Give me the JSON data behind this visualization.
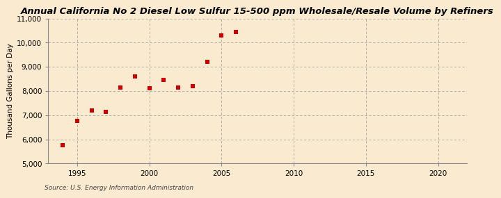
{
  "title": "Annual California No 2 Diesel Low Sulfur 15-500 ppm Wholesale/Resale Volume by Refiners",
  "ylabel": "Thousand Gallons per Day",
  "source": "Source: U.S. Energy Information Administration",
  "x_data": [
    1994,
    1995,
    1996,
    1997,
    1998,
    1999,
    2000,
    2001,
    2002,
    2003,
    2004,
    2005,
    2006
  ],
  "y_data": [
    5750,
    6750,
    7200,
    7150,
    8150,
    8600,
    8100,
    8450,
    8150,
    8200,
    9200,
    10300,
    10450
  ],
  "marker_color": "#cc0000",
  "marker_size": 18,
  "bg_color": "#faebd0",
  "plot_bg_color": "#faebd0",
  "grid_color": "#999999",
  "xlim": [
    1993,
    2022
  ],
  "ylim": [
    5000,
    11000
  ],
  "yticks": [
    5000,
    6000,
    7000,
    8000,
    9000,
    10000,
    11000
  ],
  "xticks": [
    1995,
    2000,
    2005,
    2010,
    2015,
    2020
  ],
  "title_fontsize": 9.5,
  "label_fontsize": 7.5,
  "tick_fontsize": 7.5,
  "source_fontsize": 6.5
}
